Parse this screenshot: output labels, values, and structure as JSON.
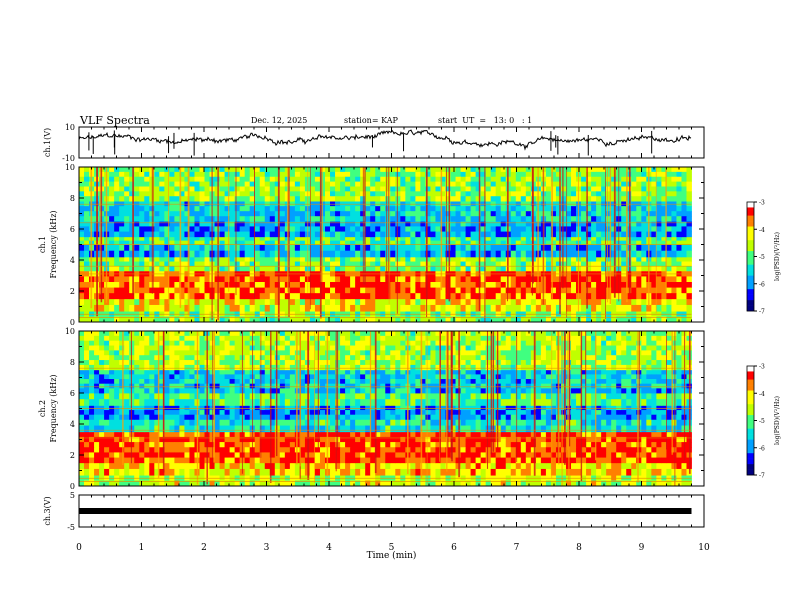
{
  "header": {
    "title": "VLF Spectra",
    "date": "Dec. 12, 2025",
    "station": "station= KAP",
    "start_time": "start  UT  =   13: 0   : 1"
  },
  "colors": {
    "colormap": [
      "#000080",
      "#0000ff",
      "#00a0ff",
      "#00e0e0",
      "#40ff80",
      "#c0ff00",
      "#ffff00",
      "#ff8000",
      "#ff0000",
      "#c00000",
      "#ffffff"
    ]
  },
  "chart_data": [
    {
      "id": "ch1-waveform",
      "type": "line",
      "ylabel": "ch.1(V)",
      "ylim": [
        -10,
        10
      ],
      "yticks": [
        "10",
        "-10"
      ],
      "xlim": [
        0,
        10
      ],
      "note": "noisy waveform, baseline near +2 V"
    },
    {
      "id": "ch1-spectrogram",
      "type": "heatmap",
      "ylabel_line1": "ch.1",
      "ylabel_line2": "Frequency (kHz)",
      "ylim": [
        0,
        10
      ],
      "yticks": [
        "0",
        "2",
        "4",
        "6",
        "8",
        "10"
      ],
      "xlim": [
        0,
        9.8
      ],
      "colorbar": {
        "label": "log(PSD)(V²/Hz)",
        "range": [
          -7,
          -3
        ],
        "ticks": [
          "-3",
          "-4",
          "-5",
          "-6",
          "-7"
        ]
      },
      "bands": [
        {
          "from_khz": 0,
          "to_khz": 0.7,
          "level": -4.8
        },
        {
          "from_khz": 0.7,
          "to_khz": 1.5,
          "level": -4.2
        },
        {
          "from_khz": 1.5,
          "to_khz": 3.3,
          "level": -3.5
        },
        {
          "from_khz": 3.3,
          "to_khz": 4.2,
          "level": -4.8
        },
        {
          "from_khz": 4.2,
          "to_khz": 5.0,
          "level": -5.7
        },
        {
          "from_khz": 5.0,
          "to_khz": 5.5,
          "level": -5.0
        },
        {
          "from_khz": 5.5,
          "to_khz": 6.5,
          "level": -5.8
        },
        {
          "from_khz": 6.5,
          "to_khz": 7.8,
          "level": -5.5
        },
        {
          "from_khz": 7.8,
          "to_khz": 10,
          "level": -4.7
        }
      ]
    },
    {
      "id": "ch2-spectrogram",
      "type": "heatmap",
      "ylabel_line1": "ch.2",
      "ylabel_line2": "Frequency (kHz)",
      "ylim": [
        0,
        10
      ],
      "yticks": [
        "0",
        "2",
        "4",
        "6",
        "8",
        "10"
      ],
      "xlim": [
        0,
        9.8
      ],
      "colorbar": {
        "label": "log(PSD)(V²/Hz)",
        "range": [
          -7,
          -3
        ],
        "ticks": [
          "-3",
          "-4",
          "-5",
          "-6",
          "-7"
        ]
      },
      "bands": [
        {
          "from_khz": 0,
          "to_khz": 0.7,
          "level": -4.5
        },
        {
          "from_khz": 0.7,
          "to_khz": 1.5,
          "level": -4.0
        },
        {
          "from_khz": 1.5,
          "to_khz": 3.5,
          "level": -3.4
        },
        {
          "from_khz": 3.5,
          "to_khz": 4.3,
          "level": -5.3
        },
        {
          "from_khz": 4.3,
          "to_khz": 5.2,
          "level": -5.8
        },
        {
          "from_khz": 5.2,
          "to_khz": 6.0,
          "level": -5.0
        },
        {
          "from_khz": 6.0,
          "to_khz": 7.5,
          "level": -5.6
        },
        {
          "from_khz": 7.5,
          "to_khz": 10,
          "level": -4.6
        }
      ]
    },
    {
      "id": "ch3-waveform",
      "type": "line",
      "ylabel": "ch.3(V)",
      "ylim": [
        -5,
        5
      ],
      "yticks": [
        "5",
        "-5"
      ],
      "xlim": [
        0,
        9.8
      ],
      "baseline": 0,
      "xlabel": "Time  (min)",
      "xticks": [
        "0",
        "1",
        "2",
        "3",
        "4",
        "5",
        "6",
        "7",
        "8",
        "9",
        "10"
      ]
    }
  ]
}
